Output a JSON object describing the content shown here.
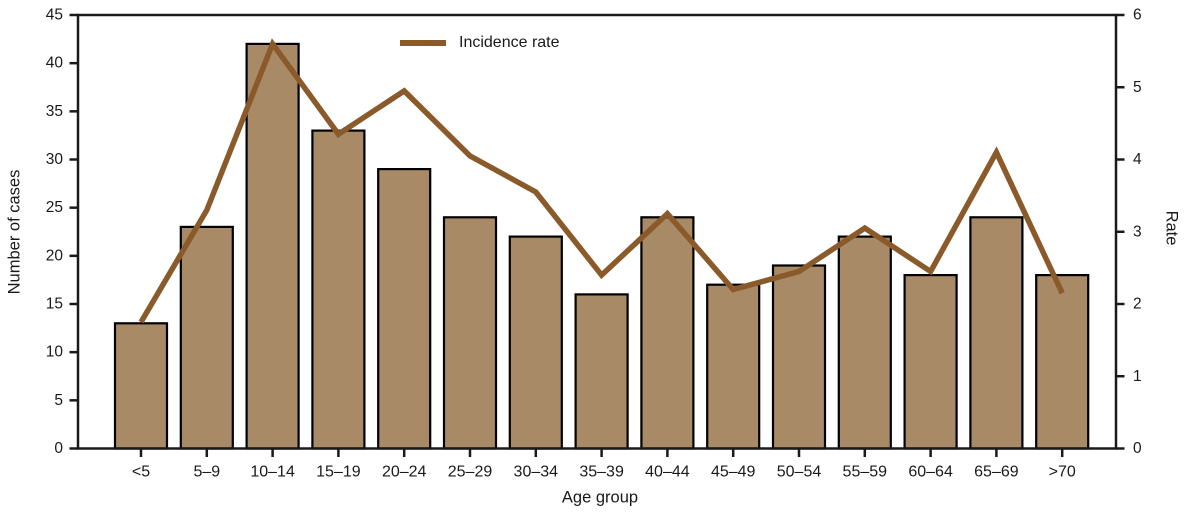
{
  "chart_data": {
    "type": "bar",
    "subtype": "bar-with-line-overlay",
    "title": "",
    "xlabel": "Age group",
    "ylabel": "Number of cases",
    "y2label": "Rate",
    "categories": [
      "<5",
      "5–9",
      "10–14",
      "15–19",
      "20–24",
      "25–29",
      "30–34",
      "35–39",
      "40–44",
      "45–49",
      "50–54",
      "55–59",
      "60–64",
      "65–69",
      ">70"
    ],
    "series": [
      {
        "name": "Number of cases",
        "type": "bar",
        "axis": "left",
        "values": [
          13,
          23,
          42,
          33,
          29,
          24,
          22,
          16,
          24,
          17,
          19,
          22,
          18,
          24,
          18
        ]
      },
      {
        "name": "Incidence rate",
        "type": "line",
        "axis": "right",
        "values": [
          1.75,
          3.3,
          5.6,
          4.35,
          4.95,
          4.05,
          3.55,
          2.4,
          3.25,
          2.2,
          2.45,
          3.05,
          2.45,
          4.1,
          2.15
        ]
      }
    ],
    "left_axis": {
      "min": 0,
      "max": 45,
      "ticks": [
        0,
        5,
        10,
        15,
        20,
        25,
        30,
        35,
        40,
        45
      ]
    },
    "right_axis": {
      "min": 0,
      "max": 6,
      "ticks": [
        0,
        1,
        2,
        3,
        4,
        5,
        6
      ]
    },
    "legend": {
      "label": "Incidence rate",
      "position": "top-center"
    },
    "grid": false,
    "colors": {
      "bar_fill": "#A98A66",
      "bar_stroke": "#000000",
      "line": "#8B5A2B",
      "axis": "#1a1a1a",
      "text": "#1a1a1a"
    }
  }
}
